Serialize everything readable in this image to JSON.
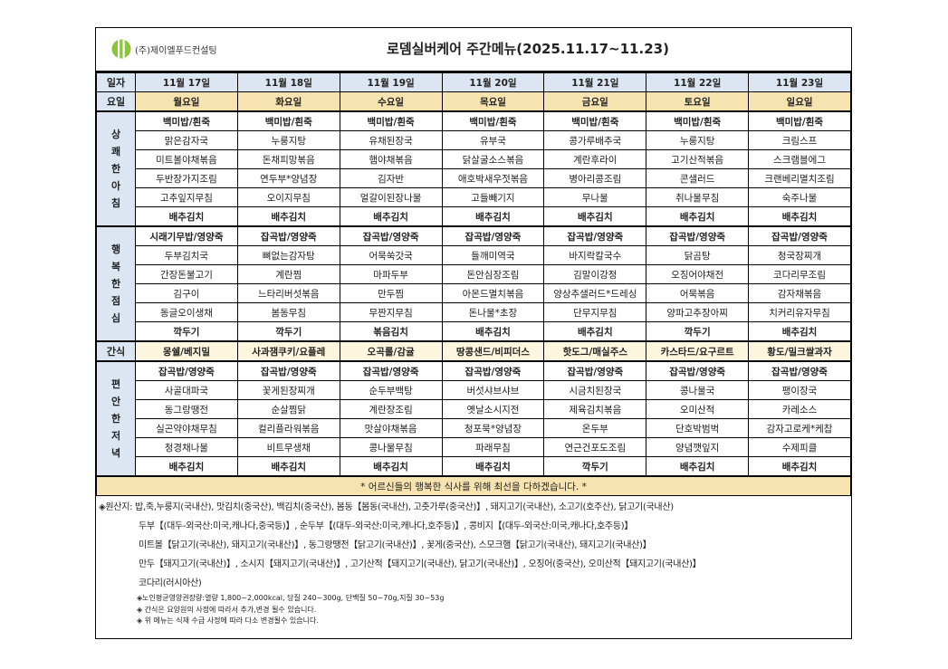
{
  "header": {
    "company": "(주)제이엘푸드컨설팅",
    "title": "로뎀실버케어 주간메뉴(2025.11.17~11.23)",
    "logo_color": "#8cc63f"
  },
  "labels": {
    "date": "일자",
    "day": "요일",
    "snack": "간식"
  },
  "dates": [
    "11월 17일",
    "11월 18일",
    "11월 19일",
    "11월 20일",
    "11월 21일",
    "11월 22일",
    "11월 23일"
  ],
  "days": [
    "월요일",
    "화요일",
    "수요일",
    "목요일",
    "금요일",
    "토요일",
    "일요일"
  ],
  "meals": [
    {
      "label": "상쾌한아침",
      "rows": [
        [
          "백미밥/흰죽",
          "백미밥/흰죽",
          "백미밥/흰죽",
          "백미밥/흰죽",
          "백미밥/흰죽",
          "백미밥/흰죽",
          "백미밥/흰죽"
        ],
        [
          "맑은감자국",
          "누룽지탕",
          "유채된장국",
          "유부국",
          "콩가루배추국",
          "누룽지탕",
          "크림스프"
        ],
        [
          "미트볼야채볶음",
          "돈채피망볶음",
          "햄야채볶음",
          "닭살굴소스볶음",
          "계란후라이",
          "고기산적볶음",
          "스크램블에그"
        ],
        [
          "두반장가지조림",
          "연두부*양념장",
          "김자반",
          "애호박새우젓볶음",
          "병아리콩조림",
          "콘샐러드",
          "크랜베리멸치조림"
        ],
        [
          "고추잎지무침",
          "오이지무침",
          "얼갈이된장나물",
          "고들빼기지",
          "무나물",
          "취나물무침",
          "숙주나물"
        ],
        [
          "배추김치",
          "배추김치",
          "배추김치",
          "배추김치",
          "배추김치",
          "배추김치",
          "배추김치"
        ]
      ]
    },
    {
      "label": "행복한점심",
      "rows": [
        [
          "시래기무밥/영양죽",
          "잡곡밥/영양죽",
          "잡곡밥/영양죽",
          "잡곡밥/영양죽",
          "잡곡밥/영양죽",
          "잡곡밥/영양죽",
          "잡곡밥/영양죽"
        ],
        [
          "두부김치국",
          "뼈없는감자탕",
          "어묵쑥갓국",
          "들깨미역국",
          "바지락칼국수",
          "닭곰탕",
          "청국장찌개"
        ],
        [
          "간장돈불고기",
          "계란찜",
          "마파두부",
          "돈안심장조림",
          "김말이강정",
          "오징어야채전",
          "코다리무조림"
        ],
        [
          "김구이",
          "느타리버섯볶음",
          "만두찜",
          "아몬드멸치볶음",
          "양상추샐러드*드레싱",
          "어묵볶음",
          "감자채볶음"
        ],
        [
          "동글오이생채",
          "봄동무침",
          "무짠지무침",
          "돈나물*초장",
          "단무지무침",
          "양파고추장아찌",
          "치커리유자무침"
        ],
        [
          "깍두기",
          "깍두기",
          "볶음김치",
          "배추김치",
          "배추김치",
          "깍두기",
          "배추김치"
        ]
      ]
    },
    {
      "label": "편안한저녁",
      "rows": [
        [
          "잡곡밥/영양죽",
          "잡곡밥/영양죽",
          "잡곡밥/영양죽",
          "잡곡밥/영양죽",
          "잡곡밥/영양죽",
          "잡곡밥/영양죽",
          "잡곡밥/영양죽"
        ],
        [
          "사골대파국",
          "꽃게된장찌개",
          "순두부백탕",
          "버섯샤브샤브",
          "시금치된장국",
          "콩나물국",
          "팽이장국"
        ],
        [
          "동그랑땡전",
          "순살찜닭",
          "계란장조림",
          "옛날소시지전",
          "제육김치볶음",
          "오미산적",
          "카레소스"
        ],
        [
          "실곤약야채무침",
          "컬리플라워볶음",
          "맛살야채볶음",
          "청포묵*양념장",
          "온두부",
          "단호박범벅",
          "감자고로케*케찹"
        ],
        [
          "청경채나물",
          "비트무생채",
          "콩나물무침",
          "파래무침",
          "연근건포도조림",
          "양념깻잎지",
          "수제피클"
        ],
        [
          "배추김치",
          "배추김치",
          "배추김치",
          "배추김치",
          "깍두기",
          "배추김치",
          "배추김치"
        ]
      ]
    }
  ],
  "snacks": [
    "몽쉘/베지밀",
    "사과잼쿠키/요플레",
    "오곡롤/감귤",
    "땅콩샌드/비피더스",
    "핫도그/매실주스",
    "카스타드/요구르트",
    "황도/밀크쌀과자"
  ],
  "message": "* 어르신들의 행복한 식사를 위해 최선을 다하겠습니다. *",
  "origin": [
    "◈원산지: 밥,죽,누룽지(국내산), 맛김치(중국산), 백김치(중국산), 봄동【봄동(국내산), 고춧가루(중국산)】, 돼지고기(국내산), 소고기(호주산), 닭고기(국내산)",
    "두부【(대두-외국산:미국,캐나다,중국등)】, 순두부【(대두-외국산:미국,캐나다,호주등)】, 콩비지【(대두-외국산:미국,캐나다,호주등)】",
    "미트볼【닭고기(국내산), 돼지고기(국내산)】, 동그랑땡전【닭고기(국내산)】, 꽃게(중국산), 스모크햄【닭고기(국내산), 돼지고기(국내산)】",
    "만두【돼지고기(국내산)】, 소시지【돼지고기(국내산)】, 고기산적【돼지고기(국내산), 닭고기(국내산)】, 오징어(중국산), 오미산적【돼지고기(국내산)】",
    "코다리(러시아산)"
  ],
  "footnotes": [
    "◈노인평균영양권장량:열량 1,800~2,000kcal, 당질 240~300g, 단백질 50~70g,지질 30~53g",
    "◈ 간식은 요양원의 사정에 따라서 추가,변경 될수 있습니다.",
    "◈ 위 메뉴는 식재 수급 사정에 따라 다소 변경될수 있습니다."
  ]
}
